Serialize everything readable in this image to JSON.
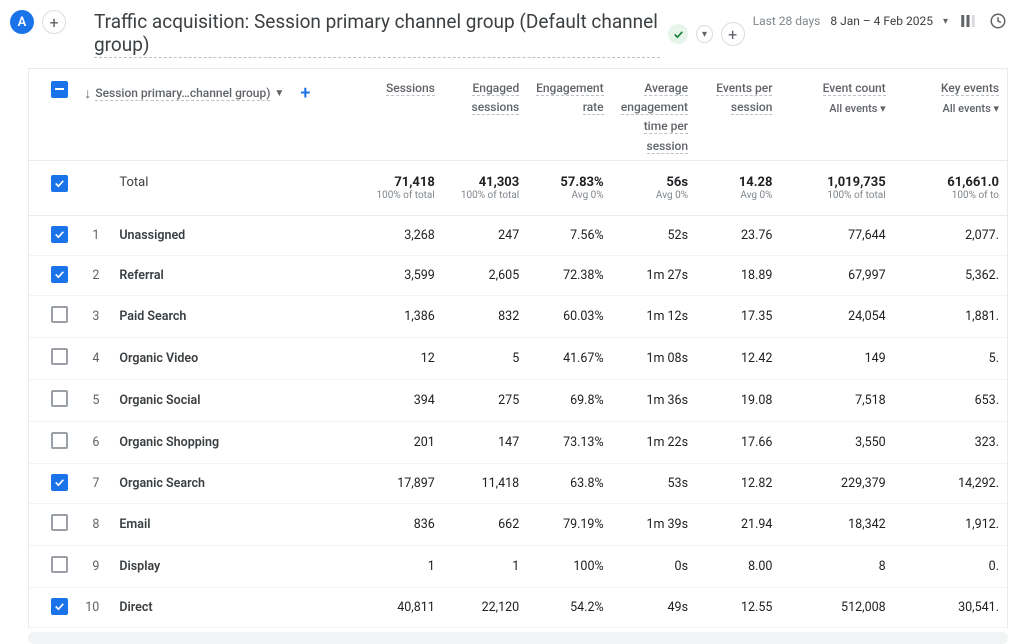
{
  "avatar_letter": "A",
  "header": {
    "title": "Traffic acquisition: Session primary channel group (Default channel group)",
    "date_label": "Last 28 days",
    "date_range": "8 Jan – 4 Feb 2025"
  },
  "dimension": {
    "label": "Session primary…channel group)"
  },
  "columns": [
    {
      "label": "Sessions"
    },
    {
      "label": "Engaged sessions"
    },
    {
      "label": "Engagement rate"
    },
    {
      "label": "Average engagement time per session"
    },
    {
      "label": "Events per session"
    },
    {
      "label": "Event count",
      "sub": "All events"
    },
    {
      "label": "Key events",
      "sub": "All events"
    }
  ],
  "totals": {
    "label": "Total",
    "values": [
      {
        "v": "71,418",
        "s": "100% of total"
      },
      {
        "v": "41,303",
        "s": "100% of total"
      },
      {
        "v": "57.83%",
        "s": "Avg 0%"
      },
      {
        "v": "56s",
        "s": "Avg 0%"
      },
      {
        "v": "14.28",
        "s": "Avg 0%"
      },
      {
        "v": "1,019,735",
        "s": "100% of total"
      },
      {
        "v": "61,661.0",
        "s": "100% of to"
      }
    ]
  },
  "rows": [
    {
      "checked": true,
      "idx": "1",
      "dim": "Unassigned",
      "v": [
        "3,268",
        "247",
        "7.56%",
        "52s",
        "23.76",
        "77,644",
        "2,077."
      ]
    },
    {
      "checked": true,
      "idx": "2",
      "dim": "Referral",
      "v": [
        "3,599",
        "2,605",
        "72.38%",
        "1m 27s",
        "18.89",
        "67,997",
        "5,362."
      ]
    },
    {
      "checked": false,
      "idx": "3",
      "dim": "Paid Search",
      "v": [
        "1,386",
        "832",
        "60.03%",
        "1m 12s",
        "17.35",
        "24,054",
        "1,881."
      ]
    },
    {
      "checked": false,
      "idx": "4",
      "dim": "Organic Video",
      "v": [
        "12",
        "5",
        "41.67%",
        "1m 08s",
        "12.42",
        "149",
        "5."
      ]
    },
    {
      "checked": false,
      "idx": "5",
      "dim": "Organic Social",
      "v": [
        "394",
        "275",
        "69.8%",
        "1m 36s",
        "19.08",
        "7,518",
        "653."
      ]
    },
    {
      "checked": false,
      "idx": "6",
      "dim": "Organic Shopping",
      "v": [
        "201",
        "147",
        "73.13%",
        "1m 22s",
        "17.66",
        "3,550",
        "323."
      ]
    },
    {
      "checked": true,
      "idx": "7",
      "dim": "Organic Search",
      "v": [
        "17,897",
        "11,418",
        "63.8%",
        "53s",
        "12.82",
        "229,379",
        "14,292."
      ]
    },
    {
      "checked": false,
      "idx": "8",
      "dim": "Email",
      "v": [
        "836",
        "662",
        "79.19%",
        "1m 39s",
        "21.94",
        "18,342",
        "1,912."
      ]
    },
    {
      "checked": false,
      "idx": "9",
      "dim": "Display",
      "v": [
        "1",
        "1",
        "100%",
        "0s",
        "8.00",
        "8",
        "0."
      ]
    },
    {
      "checked": true,
      "idx": "10",
      "dim": "Direct",
      "v": [
        "40,811",
        "22,120",
        "54.2%",
        "49s",
        "12.55",
        "512,008",
        "30,541."
      ]
    }
  ]
}
